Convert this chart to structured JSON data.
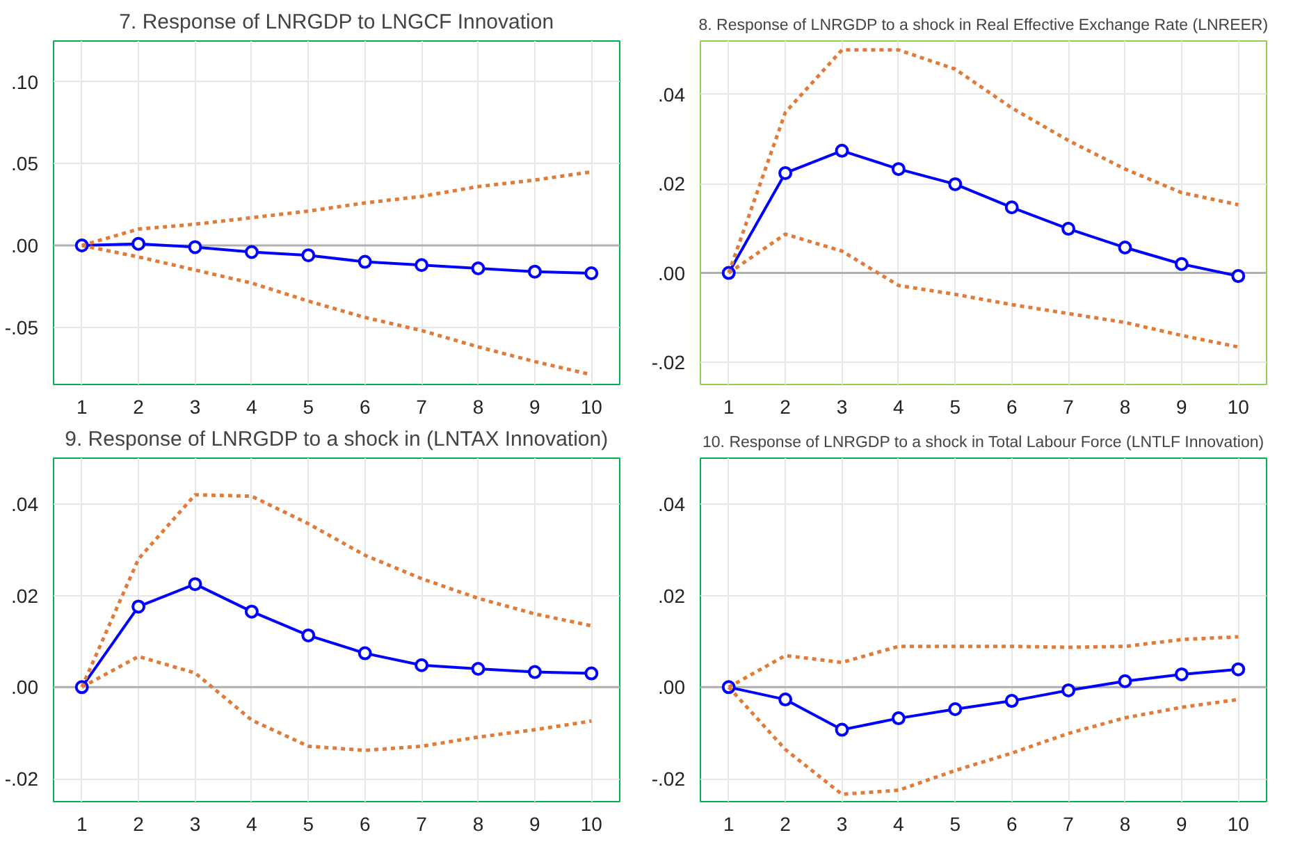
{
  "chart_data": [
    {
      "type": "line",
      "title": "7. Response of LNRGDP to LNGCF Innovation",
      "x": [
        1,
        2,
        3,
        4,
        5,
        6,
        7,
        8,
        9,
        10
      ],
      "xlim": [
        0.5,
        10.5
      ],
      "xticks": [
        1,
        2,
        3,
        4,
        5,
        6,
        7,
        8,
        9,
        10
      ],
      "ylim": [
        -0.085,
        0.125
      ],
      "yticks": [
        {
          "value": -0.05,
          "label": "-.05"
        },
        {
          "value": 0,
          "label": ".00"
        },
        {
          "value": 0.05,
          "label": ".05"
        },
        {
          "value": 0.1,
          "label": ".10"
        }
      ],
      "grid": true,
      "ref_lines": [
        {
          "axis": "y",
          "value": 0,
          "color": "#b0b0b0",
          "line_style": "solid"
        }
      ],
      "series": [
        {
          "color": "#0000ff",
          "marker": "circle",
          "line_style": "solid",
          "values": [
            0,
            0.001,
            -0.001,
            -0.004,
            -0.006,
            -0.01,
            -0.012,
            -0.014,
            -0.016,
            -0.017
          ]
        },
        {
          "color": "#e07b39",
          "marker": "none",
          "line_style": "dotted",
          "values": [
            0,
            0.01,
            0.013,
            0.017,
            0.021,
            0.026,
            0.03,
            0.036,
            0.04,
            0.045
          ]
        },
        {
          "color": "#e07b39",
          "marker": "none",
          "line_style": "dotted",
          "values": [
            0,
            -0.007,
            -0.015,
            -0.023,
            -0.034,
            -0.044,
            -0.052,
            -0.062,
            -0.071,
            -0.079
          ]
        }
      ]
    },
    {
      "type": "line",
      "title": "8. Response of LNRGDP to a shock in Real Effective Exchange Rate (LNREER)",
      "x": [
        1,
        2,
        3,
        4,
        5,
        6,
        7,
        8,
        9,
        10
      ],
      "xlim": [
        0.5,
        10.5
      ],
      "xticks": [
        1,
        2,
        3,
        4,
        5,
        6,
        7,
        8,
        9,
        10
      ],
      "ylim": [
        -0.025,
        0.052
      ],
      "yticks": [
        {
          "value": -0.02,
          "label": "-.02"
        },
        {
          "value": 0,
          "label": ".00"
        },
        {
          "value": 0.02,
          "label": ".02"
        },
        {
          "value": 0.04,
          "label": ".04"
        }
      ],
      "grid": true,
      "ref_lines": [
        {
          "axis": "y",
          "value": 0,
          "color": "#b0b0b0",
          "line_style": "solid"
        }
      ],
      "series": [
        {
          "color": "#0000ff",
          "marker": "circle",
          "line_style": "solid",
          "values": [
            0,
            0.0224,
            0.0274,
            0.0233,
            0.0199,
            0.0147,
            0.0099,
            0.0057,
            0.002,
            -0.0007
          ]
        },
        {
          "color": "#e07b39",
          "marker": "none",
          "line_style": "dotted",
          "values": [
            0,
            0.036,
            0.05,
            0.05,
            0.0457,
            0.037,
            0.0297,
            0.0233,
            0.018,
            0.0153
          ]
        },
        {
          "color": "#e07b39",
          "marker": "none",
          "line_style": "dotted",
          "values": [
            0,
            0.0087,
            0.0049,
            -0.0028,
            -0.0048,
            -0.0071,
            -0.0091,
            -0.0111,
            -0.014,
            -0.0166
          ]
        }
      ]
    },
    {
      "type": "line",
      "title": "9. Response of LNRGDP to a shock in (LNTAX Innovation)",
      "x": [
        1,
        2,
        3,
        4,
        5,
        6,
        7,
        8,
        9,
        10
      ],
      "xlim": [
        0.5,
        10.5
      ],
      "xticks": [
        1,
        2,
        3,
        4,
        5,
        6,
        7,
        8,
        9,
        10
      ],
      "ylim": [
        -0.025,
        0.05
      ],
      "yticks": [
        {
          "value": -0.02,
          "label": "-.02"
        },
        {
          "value": 0,
          "label": ".00"
        },
        {
          "value": 0.02,
          "label": ".02"
        },
        {
          "value": 0.04,
          "label": ".04"
        }
      ],
      "grid": true,
      "ref_lines": [
        {
          "axis": "y",
          "value": 0,
          "color": "#b0b0b0",
          "line_style": "solid"
        }
      ],
      "series": [
        {
          "color": "#0000ff",
          "marker": "circle",
          "line_style": "solid",
          "values": [
            0,
            0.0176,
            0.0225,
            0.0165,
            0.0113,
            0.0074,
            0.0048,
            0.004,
            0.0033,
            0.003
          ]
        },
        {
          "color": "#e07b39",
          "marker": "none",
          "line_style": "dotted",
          "values": [
            0,
            0.028,
            0.042,
            0.0417,
            0.0357,
            0.0288,
            0.0237,
            0.0194,
            0.016,
            0.0134
          ]
        },
        {
          "color": "#e07b39",
          "marker": "none",
          "line_style": "dotted",
          "values": [
            0,
            0.0067,
            0.0031,
            -0.0072,
            -0.0129,
            -0.0138,
            -0.0129,
            -0.0109,
            -0.0093,
            -0.0074
          ]
        }
      ]
    },
    {
      "type": "line",
      "title": "10. Response of LNRGDP to a shock in Total Labour Force (LNTLF Innovation)",
      "x": [
        1,
        2,
        3,
        4,
        5,
        6,
        7,
        8,
        9,
        10
      ],
      "xlim": [
        0.5,
        10.5
      ],
      "xticks": [
        1,
        2,
        3,
        4,
        5,
        6,
        7,
        8,
        9,
        10
      ],
      "ylim": [
        -0.025,
        0.05
      ],
      "yticks": [
        {
          "value": -0.02,
          "label": "-.02"
        },
        {
          "value": 0,
          "label": ".00"
        },
        {
          "value": 0.02,
          "label": ".02"
        },
        {
          "value": 0.04,
          "label": ".04"
        }
      ],
      "grid": true,
      "ref_lines": [
        {
          "axis": "y",
          "value": 0,
          "color": "#b0b0b0",
          "line_style": "solid"
        }
      ],
      "series": [
        {
          "color": "#0000ff",
          "marker": "circle",
          "line_style": "solid",
          "values": [
            0,
            -0.0027,
            -0.0093,
            -0.0068,
            -0.0048,
            -0.003,
            -0.0007,
            0.0013,
            0.0028,
            0.0039
          ]
        },
        {
          "color": "#e07b39",
          "marker": "none",
          "line_style": "dotted",
          "values": [
            0,
            0.0069,
            0.0054,
            0.0089,
            0.0089,
            0.0089,
            0.0087,
            0.0089,
            0.0104,
            0.011
          ]
        },
        {
          "color": "#e07b39",
          "marker": "none",
          "line_style": "dotted",
          "values": [
            0,
            -0.0136,
            -0.0234,
            -0.0225,
            -0.0182,
            -0.0144,
            -0.0101,
            -0.0067,
            -0.0044,
            -0.0027
          ]
        }
      ]
    }
  ]
}
